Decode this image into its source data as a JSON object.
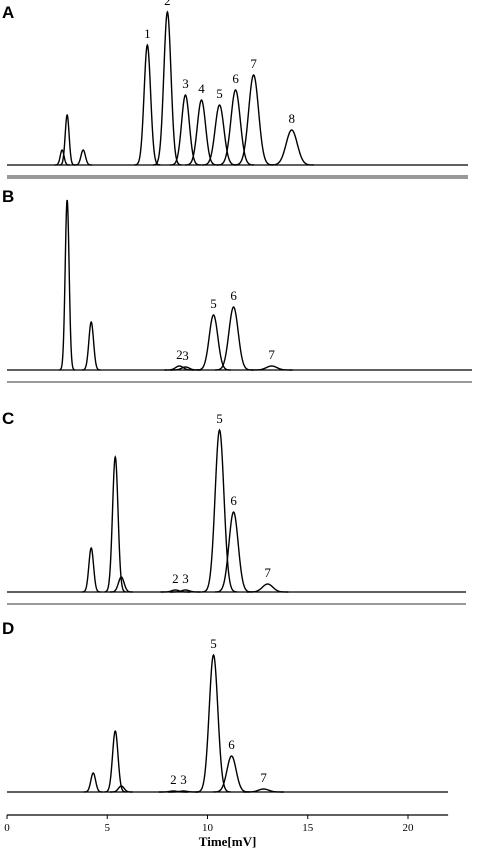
{
  "chart_data": [
    {
      "type": "chromatogram",
      "title": "A",
      "x": [
        2.75,
        3.0,
        3.8,
        7.0,
        8.0,
        8.9,
        9.7,
        10.6,
        11.4,
        12.3,
        14.2
      ],
      "values": [
        15,
        50,
        15,
        120,
        153,
        70,
        65,
        60,
        75,
        90,
        35
      ],
      "peak_labels": [
        null,
        null,
        null,
        "1",
        "2",
        "3",
        "4",
        "5",
        "6",
        "7",
        "8"
      ]
    },
    {
      "type": "chromatogram",
      "title": "B",
      "x": [
        3.0,
        4.2,
        8.6,
        8.9,
        10.3,
        11.3,
        13.2
      ],
      "values": [
        170,
        48,
        4,
        3,
        55,
        63,
        4
      ],
      "peak_labels": [
        null,
        null,
        "2",
        "3",
        "5",
        "6",
        "7"
      ]
    },
    {
      "type": "chromatogram",
      "title": "C",
      "x": [
        4.2,
        5.4,
        5.7,
        8.4,
        8.9,
        10.6,
        11.3,
        13.0
      ],
      "values": [
        44,
        135,
        15,
        2,
        2,
        162,
        80,
        8
      ],
      "peak_labels": [
        null,
        null,
        null,
        "2",
        "3",
        "5",
        "6",
        "7"
      ]
    },
    {
      "type": "chromatogram",
      "title": "D",
      "x": [
        4.3,
        5.4,
        5.7,
        8.3,
        8.8,
        10.3,
        11.2,
        12.8
      ],
      "values": [
        19,
        61,
        6,
        1,
        1,
        137,
        36,
        3
      ],
      "peak_labels": [
        null,
        null,
        null,
        "2",
        "3",
        "5",
        "6",
        "7"
      ],
      "xlim": [
        0,
        22
      ],
      "xticks": [
        0,
        5,
        10,
        15,
        20
      ],
      "xlabel": "Time[mV]"
    }
  ]
}
